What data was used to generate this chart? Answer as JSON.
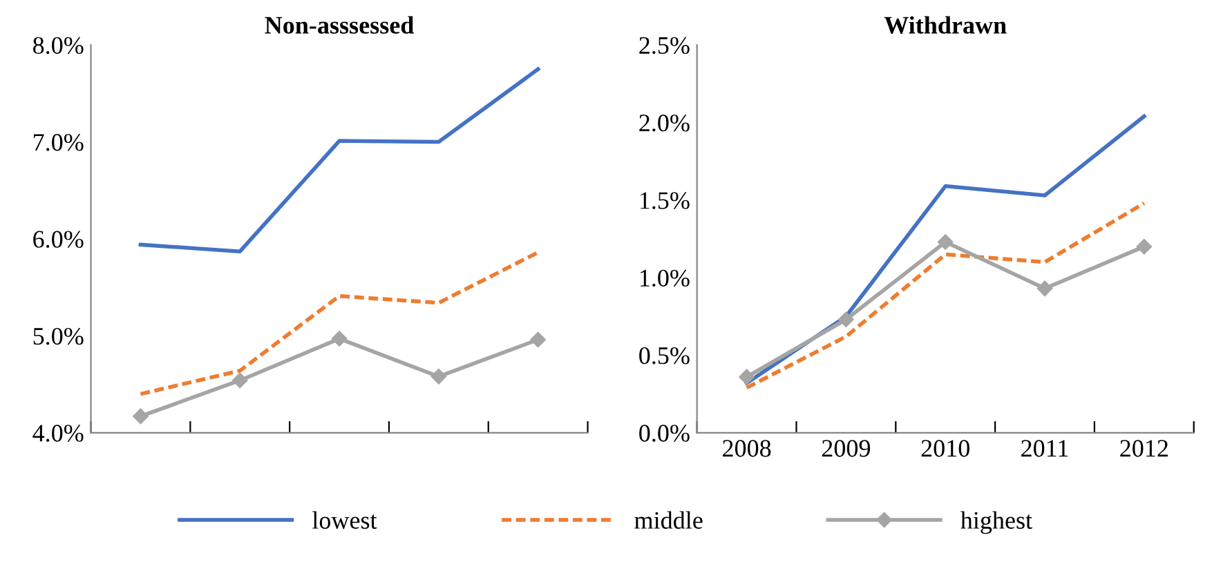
{
  "chart_data": [
    {
      "type": "line",
      "title": "Non-asssessed",
      "categories": [
        null,
        null,
        null,
        null,
        null
      ],
      "ylim": [
        4.0,
        8.0
      ],
      "yticks": [
        {
          "value": 4.0,
          "label": "4.0%"
        },
        {
          "value": 5.0,
          "label": "5.0%"
        },
        {
          "value": 6.0,
          "label": "6.0%"
        },
        {
          "value": 7.0,
          "label": "7.0%"
        },
        {
          "value": 8.0,
          "label": "8.0%"
        }
      ],
      "legend": "bottom",
      "series": [
        {
          "name": "lowest",
          "color": "#4472c4",
          "line_style": "solid",
          "marker": "none",
          "values": [
            5.94,
            5.87,
            7.01,
            7.0,
            7.75
          ]
        },
        {
          "name": "middle",
          "color": "#ed7d31",
          "line_style": "dashed",
          "marker": "none",
          "values": [
            4.4,
            4.64,
            5.41,
            5.34,
            5.86
          ]
        },
        {
          "name": "highest",
          "color": "#a5a5a5",
          "line_style": "solid",
          "marker": "diamond",
          "values": [
            4.17,
            4.54,
            4.97,
            4.58,
            4.96
          ]
        }
      ]
    },
    {
      "type": "line",
      "title": "Withdrawn",
      "categories": [
        "2008",
        "2009",
        "2010",
        "2011",
        "2012"
      ],
      "ylim": [
        0.0,
        2.5
      ],
      "yticks": [
        {
          "value": 0.0,
          "label": "0.0%"
        },
        {
          "value": 0.5,
          "label": "0.5%"
        },
        {
          "value": 1.0,
          "label": "1.0%"
        },
        {
          "value": 1.5,
          "label": "1.5%"
        },
        {
          "value": 2.0,
          "label": "2.0%"
        },
        {
          "value": 2.5,
          "label": "2.5%"
        }
      ],
      "series": [
        {
          "color": "#4472c4",
          "line_style": "solid",
          "marker": "none",
          "values": [
            0.32,
            0.75,
            1.59,
            1.53,
            2.04
          ]
        },
        {
          "color": "#ed7d31",
          "line_style": "dashed",
          "marker": "none",
          "values": [
            0.29,
            0.62,
            1.15,
            1.1,
            1.48
          ]
        },
        {
          "color": "#a5a5a5",
          "line_style": "solid",
          "marker": "diamond",
          "values": [
            0.36,
            0.73,
            1.23,
            0.93,
            1.2
          ]
        }
      ]
    }
  ]
}
